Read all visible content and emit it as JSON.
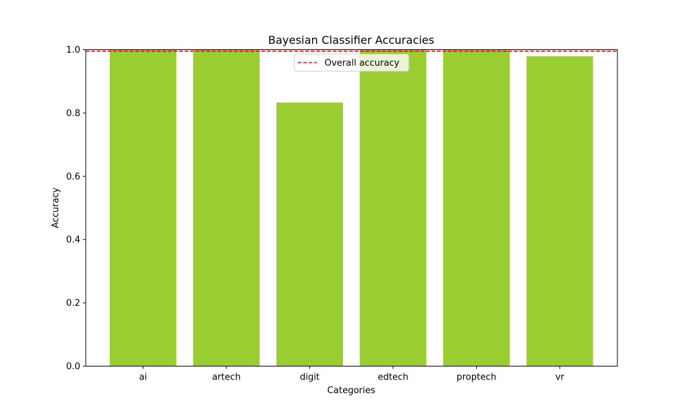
{
  "chart_data": {
    "type": "bar",
    "title": "Bayesian Classifier Accuracies",
    "xlabel": "Categories",
    "ylabel": "Accuracy",
    "categories": [
      "ai",
      "artech",
      "digit",
      "edtech",
      "proptech",
      "vr"
    ],
    "values": [
      1.0,
      1.0,
      0.833,
      1.0,
      1.0,
      0.979
    ],
    "ylim": [
      0,
      1.0
    ],
    "yticks": [
      "0.0",
      "0.2",
      "0.4",
      "0.6",
      "0.8",
      "1.0"
    ],
    "bar_color": "#9acd32",
    "reference_line": {
      "label": "Overall accuracy",
      "value": 0.995,
      "color": "#ff0000",
      "style": "dashed"
    },
    "legend": {
      "position": "top-center",
      "entries": [
        "Overall accuracy"
      ]
    },
    "grid": false
  }
}
